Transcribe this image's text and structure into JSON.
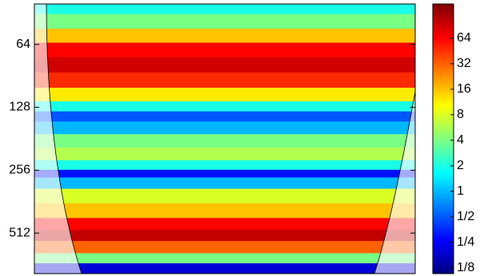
{
  "chart_data": {
    "type": "heatmap",
    "log_y": true,
    "log_color": true,
    "colormap": "jet",
    "y": [
      42,
      50,
      58,
      68,
      80,
      95,
      112,
      128,
      140,
      160,
      185,
      215,
      245,
      265,
      290,
      340,
      400,
      470,
      520,
      600,
      680,
      750
    ],
    "values": [
      2,
      4,
      16,
      64,
      90,
      48,
      12,
      2,
      0.5,
      1,
      4,
      6,
      2,
      0.3,
      1,
      8,
      16,
      64,
      100,
      32,
      4,
      0.2
    ],
    "ylim": [
      41,
      800
    ],
    "yticks": [
      64,
      128,
      256,
      512
    ],
    "clim": [
      0.107,
      162
    ],
    "cticks": [
      {
        "value": 0.125,
        "label": "1/8"
      },
      {
        "value": 0.25,
        "label": "1/4"
      },
      {
        "value": 0.5,
        "label": "1/2"
      },
      1,
      2,
      4,
      8,
      16,
      32,
      64
    ]
  }
}
